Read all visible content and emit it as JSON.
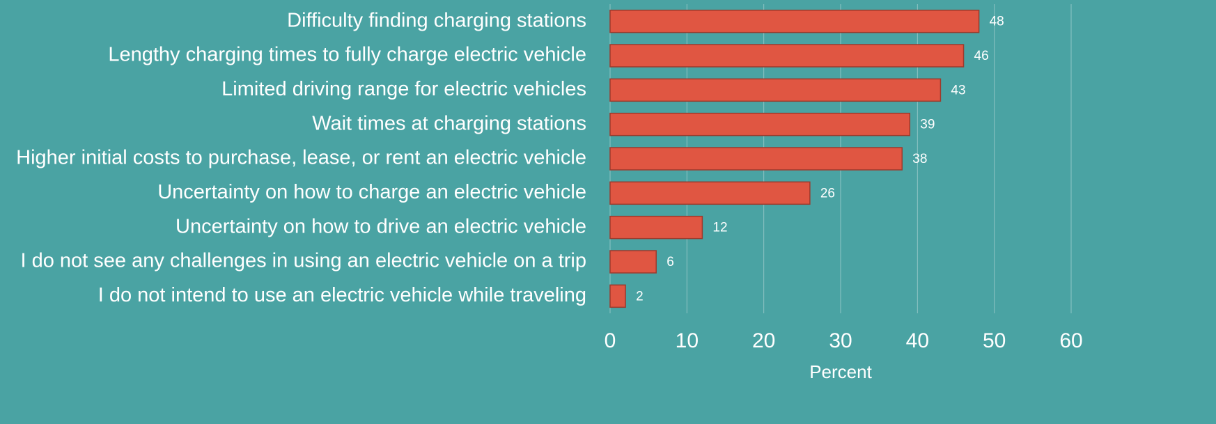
{
  "chart_data": {
    "type": "bar",
    "orientation": "horizontal",
    "categories": [
      "Difficulty finding charging stations",
      "Lengthy charging times to fully charge electric vehicle",
      "Limited driving range for electric vehicles",
      "Wait times at charging stations",
      "Higher initial costs to purchase, lease, or rent an electric vehicle",
      "Uncertainty on how to charge an electric vehicle",
      "Uncertainty on how to drive an electric vehicle",
      "I do not see any challenges in using an electric vehicle on a trip",
      "I do not intend to use an electric vehicle while traveling"
    ],
    "values": [
      48,
      46,
      43,
      39,
      38,
      26,
      12,
      6,
      2
    ],
    "color": "#e05642",
    "xlabel": "Percent",
    "xlim": [
      0,
      60
    ],
    "xticks": [
      0,
      10,
      20,
      30,
      40,
      50,
      60
    ],
    "grid": true
  }
}
